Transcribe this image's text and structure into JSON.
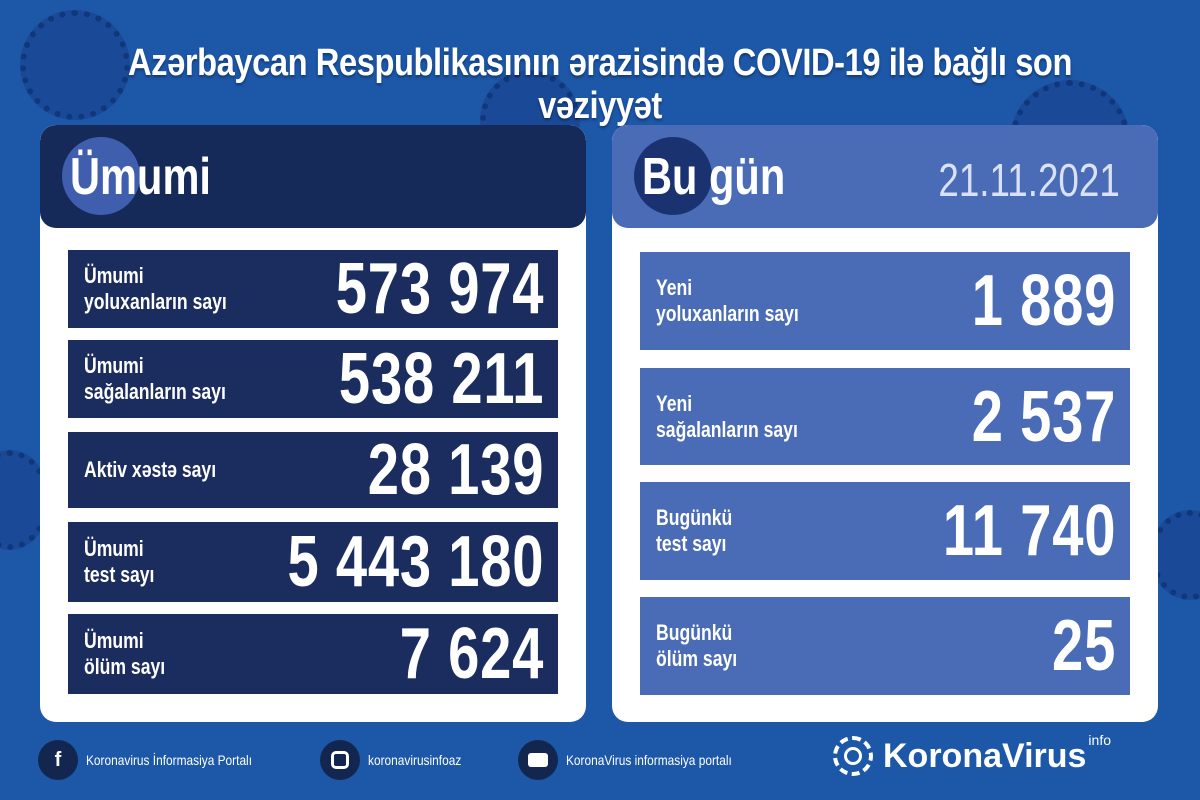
{
  "title": "Azərbaycan Respublikasının ərazisində COVID-19 ilə bağlı son vəziyyət",
  "colors": {
    "background": "#1c57a8",
    "left_panel": "#1b2d5e",
    "right_panel": "#4a6bb5",
    "card": "#ffffff"
  },
  "total": {
    "header": "Ümumi",
    "rows": [
      {
        "label": "Ümumi\nyoluxanların sayı",
        "value": "573 974"
      },
      {
        "label": "Ümumi\nsağalanların sayı",
        "value": "538 211"
      },
      {
        "label": "Aktiv xəstə sayı",
        "value": "28 139"
      },
      {
        "label": "Ümumi\ntest sayı",
        "value": "5 443 180"
      },
      {
        "label": "Ümumi\nölüm sayı",
        "value": "7 624"
      }
    ]
  },
  "today": {
    "header": "Bu gün",
    "date": "21.11.2021",
    "rows": [
      {
        "label": "Yeni\nyoluxanların sayı",
        "value": "1 889"
      },
      {
        "label": "Yeni\nsağalanların sayı",
        "value": "2 537"
      },
      {
        "label": "Bugünkü\ntest sayı",
        "value": "11 740"
      },
      {
        "label": "Bugünkü\nölüm sayı",
        "value": "25"
      }
    ]
  },
  "footer": {
    "links": [
      {
        "icon": "facebook-icon",
        "text": "Koronavirus İnformasiya Portalı"
      },
      {
        "icon": "instagram-icon",
        "text": "koronavirusinfoaz"
      },
      {
        "icon": "youtube-icon",
        "text": "KoronaVirus informasiya portalı"
      }
    ],
    "brand": "KoronaVirus",
    "brand_sup": "info"
  }
}
